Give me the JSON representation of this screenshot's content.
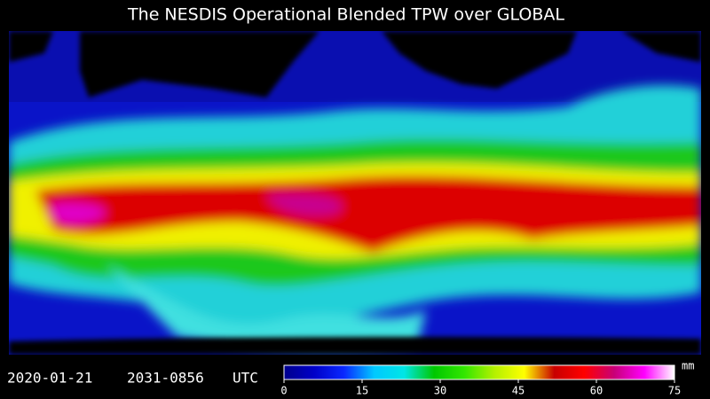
{
  "title": "The NESDIS Operational Blended TPW over GLOBAL",
  "timestamp": {
    "date": "2020-01-21",
    "time": "2031-0856",
    "zone": "UTC"
  },
  "colorbar": {
    "unit": "mm",
    "lim": [
      0,
      75
    ],
    "ticks": [
      0,
      15,
      30,
      45,
      60,
      75
    ],
    "colors": [
      "#00008c",
      "#0000c8",
      "#0a28ff",
      "#00c8ff",
      "#00e6e6",
      "#00c800",
      "#32e600",
      "#b4f000",
      "#ffff00",
      "#c80000",
      "#ff0000",
      "#c80078",
      "#ff00ff",
      "#ffffff"
    ]
  }
}
